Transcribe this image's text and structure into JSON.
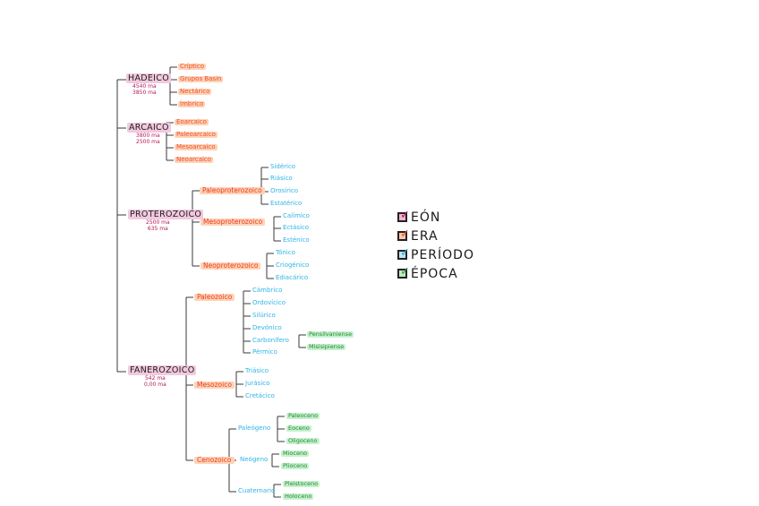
{
  "eons": {
    "hadeico": {
      "name": "HADEICO",
      "start": "4540 ma",
      "end": "3850 ma"
    },
    "arcaico": {
      "name": "ARCAICO",
      "start": "3800 ma",
      "end": "2500 ma"
    },
    "proterozoico": {
      "name": "PROTEROZOICO",
      "start": "2500 ma",
      "end": "635 ma"
    },
    "fanerozoico": {
      "name": "FANEROZOICO",
      "start": "542 ma",
      "end": "0,00 ma"
    }
  },
  "hadeico_eras": [
    "Críptico",
    "Grupos Basin",
    "Nectárico",
    "Ímbrico"
  ],
  "arcaico_eras": [
    "Eoarcaico",
    "Paleoarcaico",
    "Mesoarcaico",
    "Neoarcaico"
  ],
  "proterozoico": {
    "paleo": {
      "name": "Paleoproterozoico",
      "periods": [
        "Sidérico",
        "Riásico",
        "Orosírico",
        "Estatérico"
      ]
    },
    "meso": {
      "name": "Mesoproterozoico",
      "periods": [
        "Calímico",
        "Ectásico",
        "Esténico"
      ]
    },
    "neo": {
      "name": "Neoproterozoico",
      "periods": [
        "Tónico",
        "Criogénico",
        "Ediacárico"
      ]
    }
  },
  "fanerozoico": {
    "paleozoico": {
      "name": "Paleozoico",
      "periods": [
        "Cámbrico",
        "Ordovícico",
        "Silúrico",
        "Devónico",
        "Carbonífero",
        "Pérmico"
      ],
      "carbonifero_epochs": [
        "Pensilvaniense",
        "Misisipiense"
      ]
    },
    "mesozoico": {
      "name": "Mesozoico",
      "periods": [
        "Triásico",
        "Jurásico",
        "Cretácico"
      ]
    },
    "cenozoico": {
      "name": "Cenozoico",
      "paleogeno": {
        "name": "Paleógeno",
        "epochs": [
          "Paleoceno",
          "Eoceno",
          "Oligoceno"
        ]
      },
      "neogeno": {
        "name": "Neógeno",
        "epochs": [
          "Mioceno",
          "Plioceno"
        ]
      },
      "cuaternario": {
        "name": "Cuaternario",
        "epochs": [
          "Pleistoceno",
          "Holoceno"
        ]
      }
    }
  },
  "legend": [
    {
      "label": "EÓN",
      "color": "#c2185b"
    },
    {
      "label": "ERA",
      "color": "#f4511e"
    },
    {
      "label": "PERÍODO",
      "color": "#29a9e0"
    },
    {
      "label": "ÉPOCA",
      "color": "#2e9e3e"
    }
  ]
}
